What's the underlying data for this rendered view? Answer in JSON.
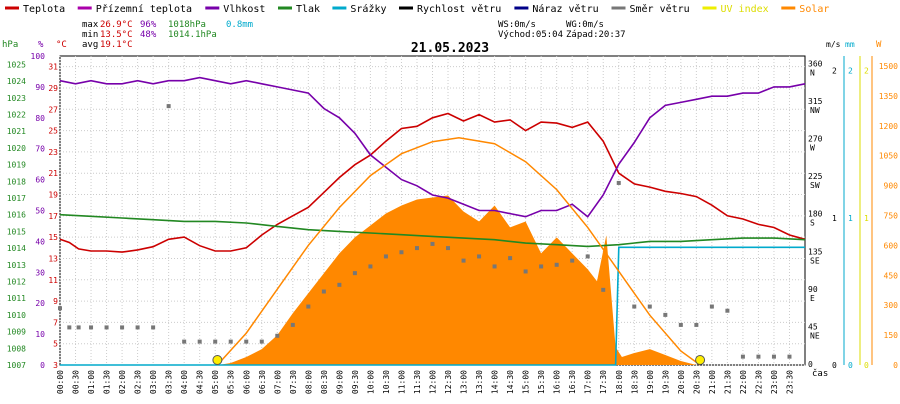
{
  "chart_data": {
    "type": "line",
    "title": "21.05.2023",
    "legend": [
      {
        "name": "Teplota",
        "color": "#cc0000"
      },
      {
        "name": "Přízemní teplota",
        "color": "#aa00aa"
      },
      {
        "name": "Vlhkost",
        "color": "#7700aa"
      },
      {
        "name": "Tlak",
        "color": "#228822"
      },
      {
        "name": "Srážky",
        "color": "#00aacc"
      },
      {
        "name": "Rychlost větru",
        "color": "#000000"
      },
      {
        "name": "Náraz větru",
        "color": "#000088"
      },
      {
        "name": "Směr větru",
        "color": "#777777"
      },
      {
        "name": "UV index",
        "color": "#eeee00"
      },
      {
        "name": "Solar",
        "color": "#ff8800"
      }
    ],
    "stats": {
      "max_label": "max",
      "min_label": "min",
      "avg_label": "avg",
      "max_temp": "26.9°C",
      "min_temp": "13.5°C",
      "avg_temp": "19.1°C",
      "max_hum": "96%",
      "min_hum": "48%",
      "max_press": "1018hPa",
      "min_press": "1014.1hPa",
      "rain": "0.8mm",
      "ws": "WS:0m/s",
      "wg": "WG:0m/s",
      "sunrise": "Východ:05:04",
      "sunset": "Západ:20:37"
    },
    "axes_left": {
      "hpa": {
        "unit": "hPa",
        "ticks": [
          "1007",
          "1008",
          "1009",
          "1010",
          "1011",
          "1012",
          "1013",
          "1014",
          "1015",
          "1016",
          "1017",
          "1018",
          "1019",
          "1020",
          "1021",
          "1022",
          "1023",
          "1024",
          "1025"
        ],
        "range": [
          1007,
          1025.5
        ],
        "color": "#228822"
      },
      "pct": {
        "unit": "%",
        "ticks": [
          "0",
          "10",
          "20",
          "30",
          "40",
          "50",
          "60",
          "70",
          "80",
          "90",
          "100"
        ],
        "range": [
          0,
          100
        ],
        "color": "#7700aa"
      },
      "degc": {
        "unit": "°C",
        "ticks": [
          "3",
          "5",
          "7",
          "9",
          "11",
          "13",
          "15",
          "17",
          "19",
          "21",
          "23",
          "25",
          "27",
          "29",
          "31"
        ],
        "range": [
          3,
          32
        ],
        "color": "#cc0000"
      }
    },
    "axes_right": {
      "dir": {
        "ticks": [
          {
            "v": 0,
            "deg": "0",
            "name": ""
          },
          {
            "v": 45,
            "deg": "45",
            "name": "NE"
          },
          {
            "v": 90,
            "deg": "90",
            "name": "E"
          },
          {
            "v": 135,
            "deg": "135",
            "name": "SE"
          },
          {
            "v": 180,
            "deg": "180",
            "name": "S"
          },
          {
            "v": 225,
            "deg": "225",
            "name": "SW"
          },
          {
            "v": 270,
            "deg": "270",
            "name": "W"
          },
          {
            "v": 315,
            "deg": "315",
            "name": "NW"
          },
          {
            "v": 360,
            "deg": "360",
            "name": "N"
          }
        ],
        "range": [
          0,
          370
        ]
      },
      "ms": {
        "unit": "m/s",
        "ticks": [
          "0",
          "1",
          "2"
        ],
        "range": [
          0,
          2.1
        ]
      },
      "mm": {
        "unit": "mm",
        "ticks": [
          "0",
          "1",
          "2"
        ],
        "range": [
          0,
          2.1
        ],
        "color": "#00aacc"
      },
      "uv": {
        "ticks": [
          "0",
          "1",
          "2"
        ],
        "range": [
          0,
          2.1
        ],
        "color": "#dddd00"
      },
      "w": {
        "unit": "W",
        "ticks": [
          "0",
          "150",
          "300",
          "450",
          "600",
          "750",
          "900",
          "1050",
          "1200",
          "1350",
          "1500"
        ],
        "range": [
          0,
          1550
        ],
        "color": "#ff8800"
      }
    },
    "x_label": "čas",
    "x_ticks": [
      "00:00",
      "00:30",
      "01:00",
      "01:30",
      "02:00",
      "02:30",
      "03:00",
      "03:30",
      "04:00",
      "04:30",
      "05:00",
      "05:30",
      "06:00",
      "06:30",
      "07:00",
      "07:30",
      "08:00",
      "08:30",
      "09:00",
      "09:30",
      "10:00",
      "10:30",
      "11:00",
      "11:30",
      "12:00",
      "12:30",
      "13:00",
      "13:30",
      "14:00",
      "14:30",
      "15:00",
      "15:30",
      "16:00",
      "16:30",
      "17:00",
      "17:30",
      "18:00",
      "18:30",
      "19:00",
      "19:30",
      "20:00",
      "20:30",
      "21:00",
      "21:30",
      "22:00",
      "22:30",
      "23:00",
      "23:30"
    ],
    "x_range_hours": [
      0,
      24
    ],
    "series": [
      {
        "name": "Teplota",
        "axis": "degc",
        "x": [
          0,
          0.3,
          0.6,
          1,
          1.5,
          2,
          2.5,
          3,
          3.5,
          4,
          4.5,
          5,
          5.5,
          6,
          6.5,
          7,
          7.5,
          8,
          8.5,
          9,
          9.5,
          10,
          10.5,
          11,
          11.5,
          12,
          12.5,
          13,
          13.5,
          14,
          14.5,
          15,
          15.5,
          16,
          16.5,
          17,
          17.5,
          18,
          18.5,
          19,
          19.5,
          20,
          20.5,
          21,
          21.5,
          22,
          22.5,
          23,
          23.5,
          24
        ],
        "values": [
          14.8,
          14.5,
          13.9,
          13.7,
          13.7,
          13.6,
          13.8,
          14.1,
          14.8,
          15,
          14.2,
          13.7,
          13.7,
          14,
          15.2,
          16.2,
          17,
          17.8,
          19.2,
          20.6,
          21.8,
          22.7,
          24,
          25.2,
          25.4,
          26.2,
          26.6,
          25.9,
          26.5,
          25.8,
          26,
          25,
          25.8,
          25.7,
          25.3,
          25.8,
          24,
          21,
          20,
          19.7,
          19.3,
          19.1,
          18.8,
          18,
          17,
          16.7,
          16.2,
          15.9,
          15.2,
          14.8
        ]
      },
      {
        "name": "Vlhkost",
        "axis": "pct",
        "x": [
          0,
          0.5,
          1,
          1.5,
          2,
          2.5,
          3,
          3.5,
          4,
          4.5,
          5,
          5.5,
          6,
          6.5,
          7,
          7.5,
          8,
          8.5,
          9,
          9.5,
          10,
          10.5,
          11,
          11.5,
          12,
          12.5,
          13,
          13.5,
          14,
          14.5,
          15,
          15.5,
          16,
          16.5,
          17,
          17.5,
          18,
          18.5,
          19,
          19.5,
          20,
          20.5,
          21,
          21.5,
          22,
          22.5,
          23,
          23.5,
          24
        ],
        "values": [
          92,
          91,
          92,
          91,
          91,
          92,
          91,
          92,
          92,
          93,
          92,
          91,
          92,
          91,
          90,
          89,
          88,
          83,
          80,
          75,
          68,
          64,
          60,
          58,
          55,
          54,
          52,
          50,
          50,
          49,
          48,
          50,
          50,
          52,
          48,
          55,
          65,
          72,
          80,
          84,
          85,
          86,
          87,
          87,
          88,
          88,
          90,
          90,
          91
        ]
      },
      {
        "name": "Tlak",
        "axis": "hpa",
        "x": [
          0,
          1,
          2,
          3,
          4,
          5,
          6,
          7,
          8,
          9,
          10,
          11,
          12,
          13,
          14,
          15,
          16,
          17,
          18,
          19,
          20,
          21,
          22,
          23,
          24
        ],
        "values": [
          1016,
          1015.9,
          1015.8,
          1015.7,
          1015.6,
          1015.6,
          1015.5,
          1015.3,
          1015.1,
          1015,
          1014.9,
          1014.8,
          1014.7,
          1014.6,
          1014.5,
          1014.3,
          1014.2,
          1014.1,
          1014.2,
          1014.4,
          1014.4,
          1014.5,
          1014.6,
          1014.6,
          1014.5
        ]
      },
      {
        "name": "Srážky",
        "axis": "mm",
        "x": [
          0,
          17.9,
          18,
          18.1,
          24
        ],
        "values": [
          0,
          0,
          0.8,
          0.8,
          0.8
        ]
      },
      {
        "name": "Solar",
        "axis": "w",
        "type": "area",
        "x": [
          0,
          5.1,
          5.5,
          6,
          6.5,
          7,
          7.5,
          8,
          8.5,
          9,
          9.5,
          10,
          10.5,
          11,
          11.5,
          12,
          12.5,
          13,
          13.5,
          14,
          14.5,
          15,
          15.5,
          16,
          16.5,
          17,
          17.3,
          17.6,
          17.9,
          18.1,
          18.5,
          19,
          19.5,
          20,
          20.5,
          24
        ],
        "values": [
          0,
          0,
          10,
          40,
          80,
          150,
          260,
          360,
          460,
          560,
          640,
          700,
          760,
          800,
          830,
          840,
          850,
          770,
          720,
          800,
          690,
          720,
          560,
          640,
          560,
          480,
          420,
          650,
          90,
          40,
          60,
          80,
          50,
          20,
          0,
          0
        ]
      },
      {
        "name": "Solar",
        "axis": "w",
        "type": "theoretical",
        "x": [
          5.07,
          6,
          7,
          8,
          9,
          10,
          11,
          12,
          12.85,
          14,
          15,
          16,
          17,
          18,
          19,
          20,
          20.62
        ],
        "values": [
          0,
          160,
          380,
          600,
          790,
          950,
          1060,
          1120,
          1140,
          1110,
          1020,
          880,
          690,
          470,
          250,
          70,
          0
        ]
      }
    ],
    "wind_direction": {
      "x": [
        0,
        0.3,
        0.6,
        1,
        1.5,
        2,
        2.5,
        3,
        3.5,
        4,
        4.5,
        5,
        5.5,
        6,
        6.5,
        7,
        7.5,
        8,
        8.5,
        9,
        9.5,
        10,
        10.5,
        11,
        11.5,
        12,
        12.5,
        13,
        13.5,
        14,
        14.5,
        15,
        15.5,
        16,
        16.5,
        17,
        17.5,
        18,
        18.5,
        19,
        19.5,
        20,
        20.5,
        21,
        21.5,
        22,
        22.5,
        23,
        23.5
      ],
      "values": [
        68,
        45,
        45,
        45,
        45,
        45,
        45,
        45,
        310,
        28,
        28,
        28,
        28,
        28,
        28,
        35,
        48,
        70,
        88,
        96,
        110,
        118,
        130,
        135,
        140,
        145,
        140,
        125,
        130,
        118,
        128,
        112,
        118,
        120,
        125,
        130,
        90,
        218,
        70,
        70,
        60,
        48,
        48,
        70,
        65,
        10,
        10,
        10,
        10
      ]
    },
    "sun_markers": [
      5.07,
      20.62
    ]
  }
}
